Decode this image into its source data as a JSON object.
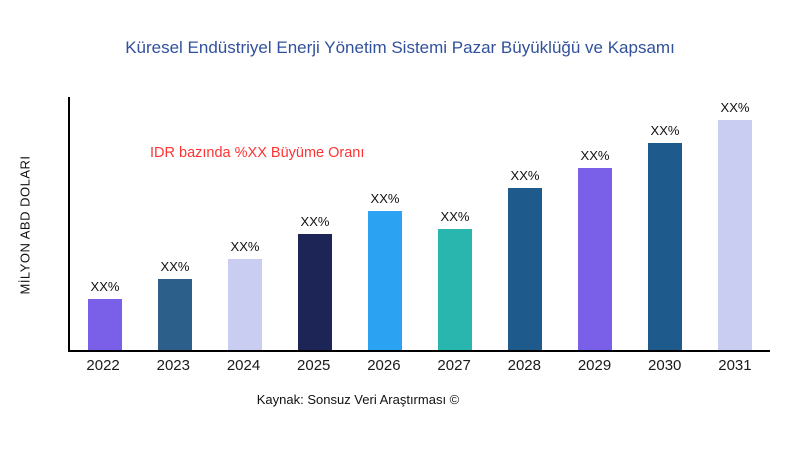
{
  "source": "Kaynak: Sonsuz Veri Araştırması ©",
  "chart_data": {
    "type": "bar",
    "title": "Küresel Endüstriyel Enerji Yönetim Sistemi Pazar Büyüklüğü ve Kapsamı",
    "title_color": "#31519c",
    "xlabel": "",
    "ylabel": "MİLYON ABD DOLARI",
    "categories": [
      "2022",
      "2023",
      "2024",
      "2025",
      "2026",
      "2027",
      "2028",
      "2029",
      "2030",
      "2031"
    ],
    "values": [
      20,
      28,
      36,
      46,
      55,
      48,
      64,
      72,
      82,
      91
    ],
    "value_labels": [
      "XX%",
      "XX%",
      "XX%",
      "XX%",
      "XX%",
      "XX%",
      "XX%",
      "XX%",
      "XX%",
      "XX%"
    ],
    "bar_colors": [
      "#7a60e8",
      "#2c5f8a",
      "#c8cdf1",
      "#1d2557",
      "#2ba3f2",
      "#29b6ae",
      "#1e5a8c",
      "#7a60e8",
      "#1e5a8c",
      "#c8cdf1"
    ],
    "ylim": [
      0,
      100
    ],
    "grid": false,
    "legend": false,
    "annotation": {
      "text": "IDR bazında %XX Büyüme Oranı",
      "color": "#ff3333"
    }
  }
}
